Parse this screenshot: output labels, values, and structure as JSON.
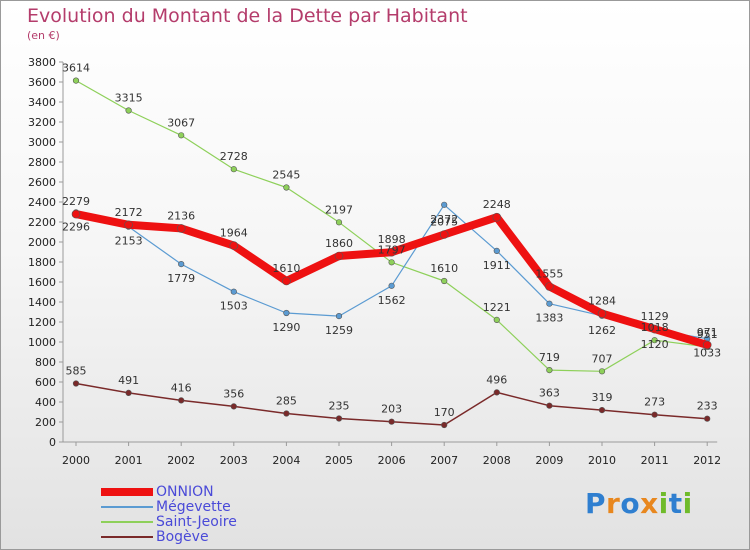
{
  "title": "Evolution du Montant de la Dette par Habitant",
  "unit": "(en €)",
  "brand": {
    "letters": [
      {
        "ch": "P",
        "color": "#2f7fd0"
      },
      {
        "ch": "r",
        "color": "#e8871e"
      },
      {
        "ch": "o",
        "color": "#2f7fd0"
      },
      {
        "ch": "x",
        "color": "#e8871e"
      },
      {
        "ch": "i",
        "color": "#6fbb2a"
      },
      {
        "ch": "t",
        "color": "#2f7fd0"
      },
      {
        "ch": "i",
        "color": "#6fbb2a"
      }
    ]
  },
  "chart_data": {
    "type": "line",
    "title": "Evolution du Montant de la Dette par Habitant",
    "subtitle": "(en €)",
    "xlabel": "",
    "ylabel": "",
    "ylim": [
      0,
      3800
    ],
    "ytick_step": 200,
    "grid": false,
    "legend_position": "bottom-left",
    "categories": [
      "2000",
      "2001",
      "2002",
      "2003",
      "2004",
      "2005",
      "2006",
      "2007",
      "2008",
      "2009",
      "2010",
      "2011",
      "2012"
    ],
    "series": [
      {
        "name": "Bogève",
        "color": "#7a2a2a",
        "width": 1.5,
        "marker": 2.8,
        "labels_below": false,
        "values": [
          585,
          491,
          416,
          356,
          285,
          235,
          203,
          170,
          496,
          363,
          319,
          273,
          233
        ]
      },
      {
        "name": "Saint-Jeoire",
        "color": "#8ed05a",
        "width": 1.2,
        "marker": 2.8,
        "labels_below": false,
        "values": [
          3614,
          3315,
          3067,
          2728,
          2545,
          2197,
          1797,
          1610,
          1221,
          719,
          707,
          1018,
          951
        ]
      },
      {
        "name": "Mégevette",
        "color": "#5b9bd2",
        "width": 1.2,
        "marker": 2.8,
        "labels_below": true,
        "values": [
          2296,
          2153,
          1779,
          1503,
          1290,
          1259,
          1562,
          2372,
          1911,
          1383,
          1262,
          1120,
          1033
        ]
      },
      {
        "name": "ONNION",
        "color": "#ee1111",
        "width": 8,
        "marker": 4,
        "labels_below": false,
        "values": [
          2279,
          2172,
          2136,
          1964,
          1610,
          1860,
          1898,
          2075,
          2248,
          1555,
          1284,
          1129,
          971
        ]
      }
    ]
  },
  "legend_order": [
    "ONNION",
    "Mégevette",
    "Saint-Jeoire",
    "Bogève"
  ]
}
